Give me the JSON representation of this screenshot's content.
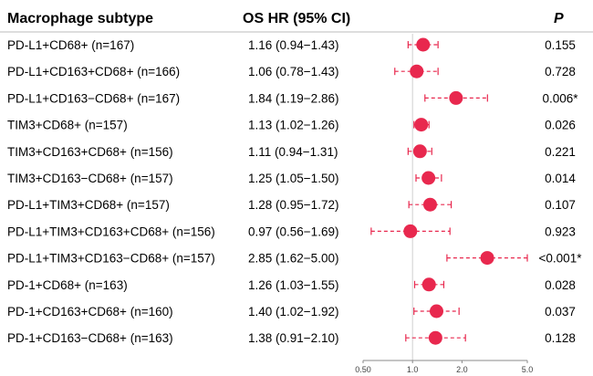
{
  "headers": {
    "subtype": "Macrophage subtype",
    "hr": "OS HR (95% CI)",
    "p": "P"
  },
  "chart_data": {
    "type": "forest",
    "x_scale": "log",
    "xlim": [
      0.5,
      5.0
    ],
    "reference_line": 1.0,
    "ticks": [
      0.5,
      1.0,
      2.0,
      5.0
    ],
    "tick_labels": [
      "0.50",
      "1.0",
      "2.0",
      "5.0"
    ],
    "colors": {
      "point": "#e8284e",
      "ci": "#e8284e",
      "ref": "#cfcfcf",
      "divider": "#bbbbbb"
    },
    "rows": [
      {
        "label": "PD-L1+CD68+ (n=167)",
        "hr": 1.16,
        "lo": 0.94,
        "hi": 1.43,
        "hr_text": "1.16 (0.94−1.43)",
        "p": "0.155"
      },
      {
        "label": "PD-L1+CD163+CD68+ (n=166)",
        "hr": 1.06,
        "lo": 0.78,
        "hi": 1.43,
        "hr_text": "1.06 (0.78−1.43)",
        "p": "0.728"
      },
      {
        "label": "PD-L1+CD163−CD68+ (n=167)",
        "hr": 1.84,
        "lo": 1.19,
        "hi": 2.86,
        "hr_text": "1.84 (1.19−2.86)",
        "p": "0.006*"
      },
      {
        "label": "TIM3+CD68+ (n=157)",
        "hr": 1.13,
        "lo": 1.02,
        "hi": 1.26,
        "hr_text": "1.13 (1.02−1.26)",
        "p": "0.026"
      },
      {
        "label": "TIM3+CD163+CD68+ (n=156)",
        "hr": 1.11,
        "lo": 0.94,
        "hi": 1.31,
        "hr_text": "1.11 (0.94−1.31)",
        "p": "0.221"
      },
      {
        "label": "TIM3+CD163−CD68+ (n=157)",
        "hr": 1.25,
        "lo": 1.05,
        "hi": 1.5,
        "hr_text": "1.25 (1.05−1.50)",
        "p": "0.014"
      },
      {
        "label": "PD-L1+TIM3+CD68+ (n=157)",
        "hr": 1.28,
        "lo": 0.95,
        "hi": 1.72,
        "hr_text": "1.28 (0.95−1.72)",
        "p": "0.107"
      },
      {
        "label": "PD-L1+TIM3+CD163+CD68+ (n=156)",
        "hr": 0.97,
        "lo": 0.56,
        "hi": 1.69,
        "hr_text": "0.97 (0.56−1.69)",
        "p": "0.923"
      },
      {
        "label": "PD-L1+TIM3+CD163−CD68+ (n=157)",
        "hr": 2.85,
        "lo": 1.62,
        "hi": 5.0,
        "hr_text": "2.85 (1.62−5.00)",
        "p": "<0.001*"
      },
      {
        "label": "PD-1+CD68+ (n=163)",
        "hr": 1.26,
        "lo": 1.03,
        "hi": 1.55,
        "hr_text": "1.26 (1.03−1.55)",
        "p": "0.028"
      },
      {
        "label": "PD-1+CD163+CD68+ (n=160)",
        "hr": 1.4,
        "lo": 1.02,
        "hi": 1.92,
        "hr_text": "1.40 (1.02−1.92)",
        "p": "0.037"
      },
      {
        "label": "PD-1+CD163−CD68+ (n=163)",
        "hr": 1.38,
        "lo": 0.91,
        "hi": 2.1,
        "hr_text": "1.38 (0.91−2.10)",
        "p": "0.128"
      }
    ]
  }
}
